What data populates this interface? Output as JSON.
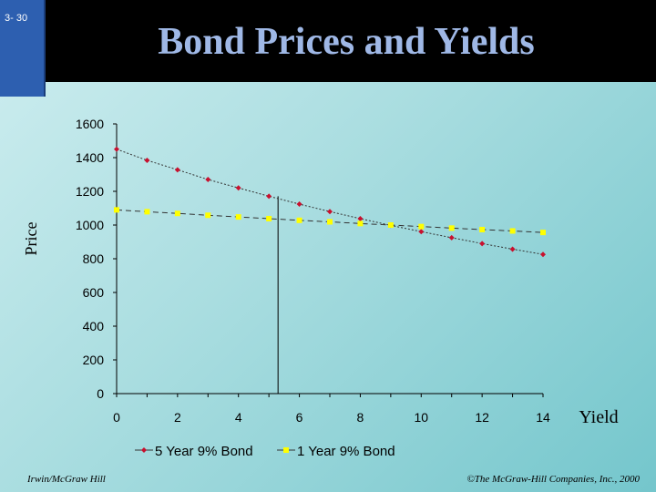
{
  "slide": {
    "number": "3- 30",
    "title": "Bond Prices and Yields"
  },
  "footer": {
    "left": "Irwin/McGraw Hill",
    "right": "©The McGraw-Hill Companies, Inc., 2000"
  },
  "chart_data": {
    "type": "line",
    "title": "",
    "xlabel": "Yield",
    "ylabel": "Price",
    "xlim": [
      0,
      14
    ],
    "ylim": [
      0,
      1600
    ],
    "x_ticks": [
      0,
      2,
      4,
      6,
      8,
      10,
      12,
      14
    ],
    "y_ticks": [
      0,
      200,
      400,
      600,
      800,
      1000,
      1200,
      1400,
      1600
    ],
    "grid": false,
    "legend": "bottom",
    "vertical_line_x": 5.3,
    "series": [
      {
        "name": "5 Year 9% Bond",
        "color": "#c8102e",
        "marker": "diamond",
        "x": [
          0,
          1,
          2,
          3,
          4,
          5,
          6,
          7,
          8,
          9,
          10,
          11,
          12,
          13,
          14
        ],
        "y": [
          1450,
          1384,
          1328,
          1270,
          1220,
          1171,
          1124,
          1080,
          1038,
          998,
          961,
          925,
          890,
          857,
          826
        ]
      },
      {
        "name": "1 Year 9% Bond",
        "color": "#ffff00",
        "marker": "square",
        "x": [
          0,
          1,
          2,
          3,
          4,
          5,
          6,
          7,
          8,
          9,
          10,
          11,
          12,
          13,
          14
        ],
        "y": [
          1090,
          1079,
          1069,
          1058,
          1048,
          1038,
          1028,
          1019,
          1009,
          1000,
          991,
          982,
          973,
          965,
          956
        ]
      }
    ]
  }
}
